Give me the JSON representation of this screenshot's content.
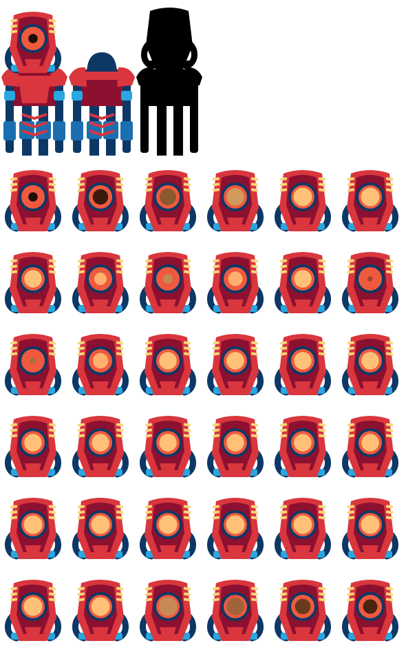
{
  "sheet": {
    "title": "robot-sprite-sheet",
    "background": "#ffffff"
  },
  "palette": {
    "crimson": "#8c1030",
    "red": "#d9363e",
    "coral": "#ef5a3f",
    "cream": "#f7d77a",
    "navy": "#0d3866",
    "blue": "#1b6fb0",
    "cyan": "#2aa6e0",
    "black": "#000000",
    "darkCrimson": "#5e0c22"
  },
  "characters": [
    {
      "id": "robot-front-view",
      "kind": "front",
      "pupil": "#1f0d08"
    },
    {
      "id": "robot-back-view",
      "kind": "back"
    },
    {
      "id": "robot-silhouette",
      "kind": "silhouette"
    }
  ],
  "eye_frames": {
    "columns": 6,
    "rows": 6,
    "frames": [
      {
        "eye": "#ef5a3f",
        "pupil": "#1f0d08",
        "pupil_scale": 0.45
      },
      {
        "eye": "#ef5a3f",
        "pupil": "#3a1a0c",
        "pupil_scale": 0.75
      },
      {
        "eye": "#ef5a3f",
        "pupil": "#8a5a2e",
        "pupil_scale": 0.8
      },
      {
        "eye": "#ef5a3f",
        "pupil": "#d39a5e",
        "pupil_scale": 0.85
      },
      {
        "eye": "#ef5a3f",
        "pupil": "#ffc078",
        "pupil_scale": 0.9
      },
      {
        "eye": "#ef5a3f",
        "pupil": "#ffc078",
        "pupil_scale": 0.9
      },
      {
        "eye": "#ef5a3f",
        "pupil": "#ffc078",
        "pupil_scale": 0.85
      },
      {
        "eye": "#ef5a3f",
        "pupil": "#ffb06e",
        "pupil_scale": 0.6
      },
      {
        "eye": "#ef5a3f",
        "pupil": "#c08a55",
        "pupil_scale": 0.45
      },
      {
        "eye": "#ef5a3f",
        "pupil": "#ffb06e",
        "pupil_scale": 0.7
      },
      {
        "eye": "#ef5a3f",
        "pupil": "#ffc078",
        "pupil_scale": 0.85
      },
      {
        "eye": "#ef5a3f",
        "pupil": "#a0452a",
        "pupil_scale": 0.25
      },
      {
        "eye": "#ef5a3f",
        "pupil": "#a87040",
        "pupil_scale": 0.3
      },
      {
        "eye": "#ef5a3f",
        "pupil": "#ffb06e",
        "pupil_scale": 0.75
      },
      {
        "eye": "#ef5a3f",
        "pupil": "#ffc078",
        "pupil_scale": 0.85
      },
      {
        "eye": "#ef5a3f",
        "pupil": "#ffc078",
        "pupil_scale": 0.85
      },
      {
        "eye": "#ef5a3f",
        "pupil": "#ffc078",
        "pupil_scale": 0.85
      },
      {
        "eye": "#ef5a3f",
        "pupil": "#ffc078",
        "pupil_scale": 0.85
      },
      {
        "eye": "#ef5a3f",
        "pupil": "#ffc078",
        "pupil_scale": 0.85
      },
      {
        "eye": "#ef5a3f",
        "pupil": "#ffc078",
        "pupil_scale": 0.85
      },
      {
        "eye": "#ef5a3f",
        "pupil": "#ffc078",
        "pupil_scale": 0.85
      },
      {
        "eye": "#ef5a3f",
        "pupil": "#ffc078",
        "pupil_scale": 0.85
      },
      {
        "eye": "#ef5a3f",
        "pupil": "#ffc078",
        "pupil_scale": 0.85
      },
      {
        "eye": "#ef5a3f",
        "pupil": "#ffc078",
        "pupil_scale": 0.85
      },
      {
        "eye": "#ef5a3f",
        "pupil": "#ffc078",
        "pupil_scale": 0.9
      },
      {
        "eye": "#ef5a3f",
        "pupil": "#ffc078",
        "pupil_scale": 0.9
      },
      {
        "eye": "#ef5a3f",
        "pupil": "#ffc078",
        "pupil_scale": 0.9
      },
      {
        "eye": "#ef5a3f",
        "pupil": "#ffc078",
        "pupil_scale": 0.9
      },
      {
        "eye": "#ef5a3f",
        "pupil": "#ffc078",
        "pupil_scale": 0.9
      },
      {
        "eye": "#ef5a3f",
        "pupil": "#ffc078",
        "pupil_scale": 0.9
      },
      {
        "eye": "#ef5a3f",
        "pupil": "#ffc078",
        "pupil_scale": 0.9
      },
      {
        "eye": "#ef5a3f",
        "pupil": "#ffc078",
        "pupil_scale": 0.9
      },
      {
        "eye": "#ef5a3f",
        "pupil": "#c88a55",
        "pupil_scale": 0.9
      },
      {
        "eye": "#ef5a3f",
        "pupil": "#a0643a",
        "pupil_scale": 0.85
      },
      {
        "eye": "#ef5a3f",
        "pupil": "#6a3a1c",
        "pupil_scale": 0.75
      },
      {
        "eye": "#ef5a3f",
        "pupil": "#4a2410",
        "pupil_scale": 0.7
      }
    ]
  }
}
